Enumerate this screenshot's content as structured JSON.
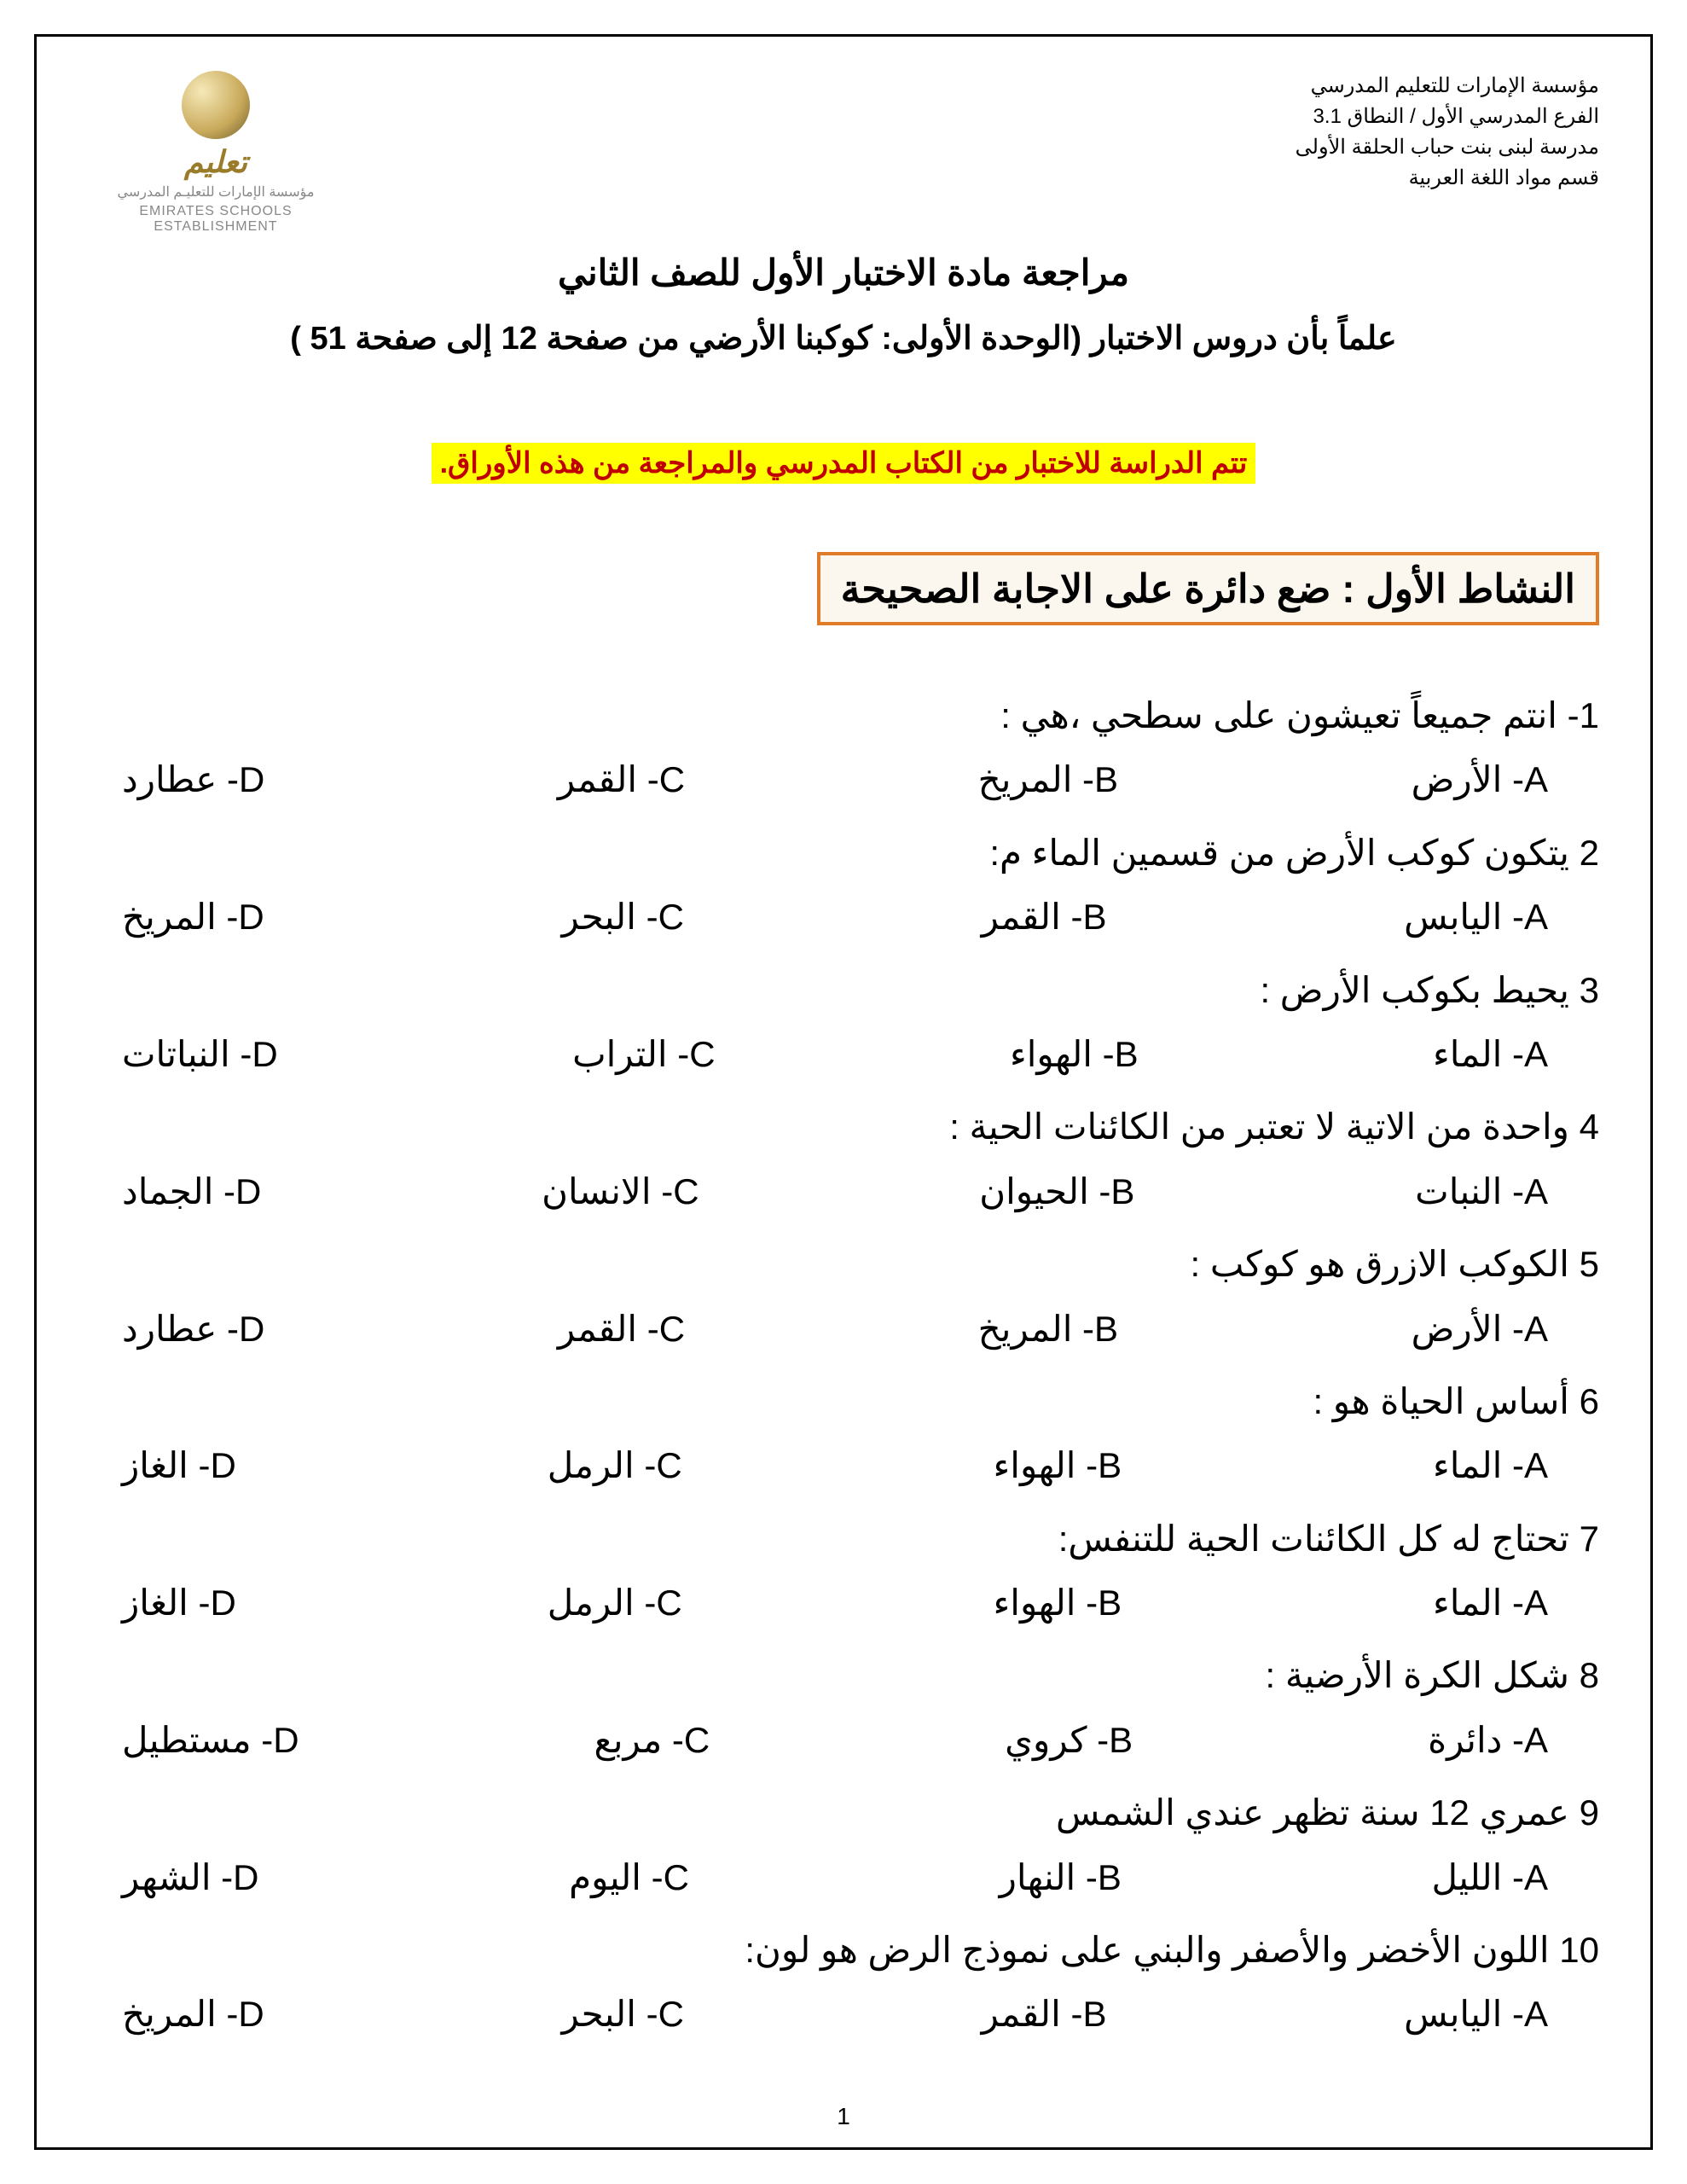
{
  "header": {
    "org_lines": [
      "مؤسسة الإمارات للتعليم المدرسي",
      "الفرع المدرسي الأول / النطاق 3.1",
      "مدرسة لبنى بنت حباب الحلقة الأولى",
      "قسم مواد اللغة العربية"
    ],
    "logo_ar": "تعليم",
    "logo_sub_ar": "مؤسسة الإمارات للتعليـم المدرسي",
    "logo_sub_en": "EMIRATES SCHOOLS ESTABLISHMENT"
  },
  "title": {
    "main": "مراجعة مادة الاختبار الأول للصف الثاني",
    "sub": "علماً بأن دروس الاختبار (الوحدة الأولى: كوكبنا الأرضي من صفحة  12  إلى صفحة  51 )"
  },
  "notice": "تتم الدراسة للاختبار من الكتاب المدرسي والمراجعة من هذه الأوراق.",
  "activity_label": "النشاط الأول : ضع دائرة على الاجابة الصحيحة",
  "questions": [
    {
      "num": "1",
      "text": "- انتم جميعاً تعيشون على سطحي ،هي :",
      "options": [
        "A- الأرض",
        "B- المريخ",
        "C- القمر",
        "D- عطارد"
      ]
    },
    {
      "num": "2",
      "text": " يتكون كوكب الأرض من قسمين الماء  م:",
      "options": [
        "A- اليابس",
        "B- القمر",
        "C- البحر",
        "D- المريخ"
      ]
    },
    {
      "num": "3",
      "text": " يحيط بكوكب الأرض :",
      "options": [
        "A- الماء",
        "B- الهواء",
        "C- التراب",
        "D- النباتات"
      ]
    },
    {
      "num": "4",
      "text": " واحدة من الاتية لا تعتبر من الكائنات الحية :",
      "options": [
        "A- النبات",
        "B- الحيوان",
        "C- الانسان",
        "D- الجماد"
      ]
    },
    {
      "num": "5",
      "text": " الكوكب الازرق هو كوكب :",
      "options": [
        "A- الأرض",
        "B- المريخ",
        "C- القمر",
        "D- عطارد"
      ]
    },
    {
      "num": "6",
      "text": " أساس الحياة هو :",
      "options": [
        "A- الماء",
        "B- الهواء",
        "C-  الرمل",
        "D- الغاز"
      ]
    },
    {
      "num": "7",
      "text": " تحتاج له كل الكائنات الحية للتنفس:",
      "options": [
        "A- الماء",
        "B- الهواء",
        "C-  الرمل",
        "D- الغاز"
      ]
    },
    {
      "num": "8",
      "text": " شكل الكرة الأرضية :",
      "options": [
        "A- دائرة",
        "B- كروي",
        "C- مربع",
        "D- مستطيل"
      ]
    },
    {
      "num": "9",
      "text": " عمري 12 سنة تظهر عندي الشمس",
      "options": [
        "A- الليل",
        "B- النهار",
        "C- اليوم",
        "D- الشهر"
      ]
    },
    {
      "num": "10",
      "text": " اللون الأخضر والأصفر والبني  على نموذج الرض هو لون:",
      "options": [
        "A- اليابس",
        "B- القمر",
        "C- البحر",
        "D- المريخ"
      ]
    }
  ],
  "page_number": "1",
  "colors": {
    "border": "#000000",
    "highlight_bg": "#ffff00",
    "highlight_text": "#c00000",
    "activity_border": "#e07b28",
    "activity_bg": "#fbf7ef"
  }
}
